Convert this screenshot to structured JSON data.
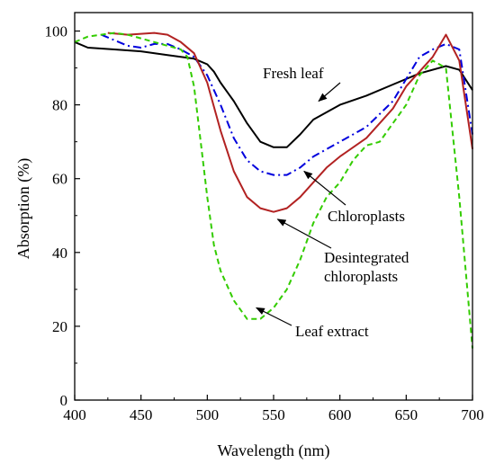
{
  "chart_data": {
    "type": "line",
    "title": "",
    "xlabel": "Wavelength (nm)",
    "ylabel": "Absorption (%)",
    "xlim": [
      400,
      700
    ],
    "ylim": [
      0,
      105
    ],
    "x_ticks": [
      400,
      450,
      500,
      550,
      600,
      650,
      700
    ],
    "y_ticks": [
      0,
      20,
      40,
      60,
      80,
      100
    ],
    "grid": false,
    "legend": "none",
    "series": [
      {
        "name": "Fresh leaf",
        "color": "#000000",
        "dash": "solid",
        "points": [
          [
            400,
            97
          ],
          [
            410,
            95.5
          ],
          [
            430,
            95
          ],
          [
            450,
            94.5
          ],
          [
            470,
            93.5
          ],
          [
            490,
            92.5
          ],
          [
            500,
            91
          ],
          [
            505,
            89
          ],
          [
            510,
            86
          ],
          [
            520,
            81
          ],
          [
            530,
            75
          ],
          [
            540,
            70
          ],
          [
            550,
            68.5
          ],
          [
            560,
            68.5
          ],
          [
            570,
            72
          ],
          [
            580,
            76
          ],
          [
            600,
            80
          ],
          [
            620,
            82.5
          ],
          [
            640,
            85.5
          ],
          [
            660,
            88.5
          ],
          [
            680,
            90.5
          ],
          [
            690,
            89.5
          ],
          [
            700,
            84
          ]
        ]
      },
      {
        "name": "Chloroplasts",
        "color": "#0000dd",
        "dash": "dashdot",
        "points": [
          [
            420,
            99
          ],
          [
            440,
            96
          ],
          [
            450,
            95.5
          ],
          [
            460,
            96.5
          ],
          [
            470,
            96.5
          ],
          [
            480,
            95
          ],
          [
            490,
            93
          ],
          [
            500,
            88
          ],
          [
            510,
            80
          ],
          [
            520,
            71
          ],
          [
            530,
            65
          ],
          [
            540,
            62
          ],
          [
            550,
            61
          ],
          [
            560,
            61
          ],
          [
            570,
            63
          ],
          [
            580,
            66
          ],
          [
            600,
            70
          ],
          [
            620,
            74
          ],
          [
            640,
            81
          ],
          [
            650,
            87
          ],
          [
            660,
            93
          ],
          [
            670,
            95
          ],
          [
            680,
            96.5
          ],
          [
            690,
            95
          ],
          [
            700,
            72
          ]
        ]
      },
      {
        "name": "Desintegrated chloroplasts",
        "color": "#b22222",
        "dash": "solid",
        "points": [
          [
            425,
            99.5
          ],
          [
            440,
            99
          ],
          [
            460,
            99.5
          ],
          [
            470,
            99
          ],
          [
            480,
            97
          ],
          [
            490,
            94
          ],
          [
            500,
            86
          ],
          [
            510,
            73
          ],
          [
            520,
            62
          ],
          [
            530,
            55
          ],
          [
            540,
            52
          ],
          [
            550,
            51
          ],
          [
            560,
            52
          ],
          [
            570,
            55
          ],
          [
            580,
            59
          ],
          [
            590,
            63
          ],
          [
            600,
            66
          ],
          [
            620,
            71
          ],
          [
            640,
            79
          ],
          [
            650,
            85
          ],
          [
            660,
            89
          ],
          [
            670,
            93
          ],
          [
            680,
            99
          ],
          [
            690,
            92
          ],
          [
            700,
            68
          ]
        ]
      },
      {
        "name": "Leaf extract",
        "color": "#33cc00",
        "dash": "dashed",
        "points": [
          [
            400,
            97
          ],
          [
            410,
            98.5
          ],
          [
            420,
            99
          ],
          [
            430,
            99.5
          ],
          [
            440,
            99
          ],
          [
            460,
            97
          ],
          [
            480,
            95
          ],
          [
            485,
            93
          ],
          [
            490,
            85
          ],
          [
            495,
            70
          ],
          [
            500,
            55
          ],
          [
            505,
            42
          ],
          [
            510,
            35
          ],
          [
            520,
            27
          ],
          [
            530,
            22
          ],
          [
            540,
            22
          ],
          [
            550,
            25
          ],
          [
            560,
            30
          ],
          [
            570,
            38
          ],
          [
            580,
            48
          ],
          [
            590,
            55
          ],
          [
            600,
            59
          ],
          [
            610,
            65
          ],
          [
            620,
            69
          ],
          [
            630,
            70
          ],
          [
            640,
            75
          ],
          [
            650,
            80
          ],
          [
            660,
            88
          ],
          [
            670,
            92
          ],
          [
            680,
            90
          ],
          [
            690,
            55
          ],
          [
            700,
            14
          ]
        ]
      }
    ],
    "annotations": [
      {
        "text": "Fresh leaf",
        "anchor_x": 584,
        "anchor_y": 81
      },
      {
        "text": "Chloroplasts",
        "anchor_x": 573,
        "anchor_y": 62
      },
      {
        "text": "Desintegrated",
        "anchor_x": 553,
        "anchor_y": 49
      },
      {
        "text": "chloroplasts"
      },
      {
        "text": "Leaf extract",
        "anchor_x": 537,
        "anchor_y": 25
      }
    ]
  }
}
